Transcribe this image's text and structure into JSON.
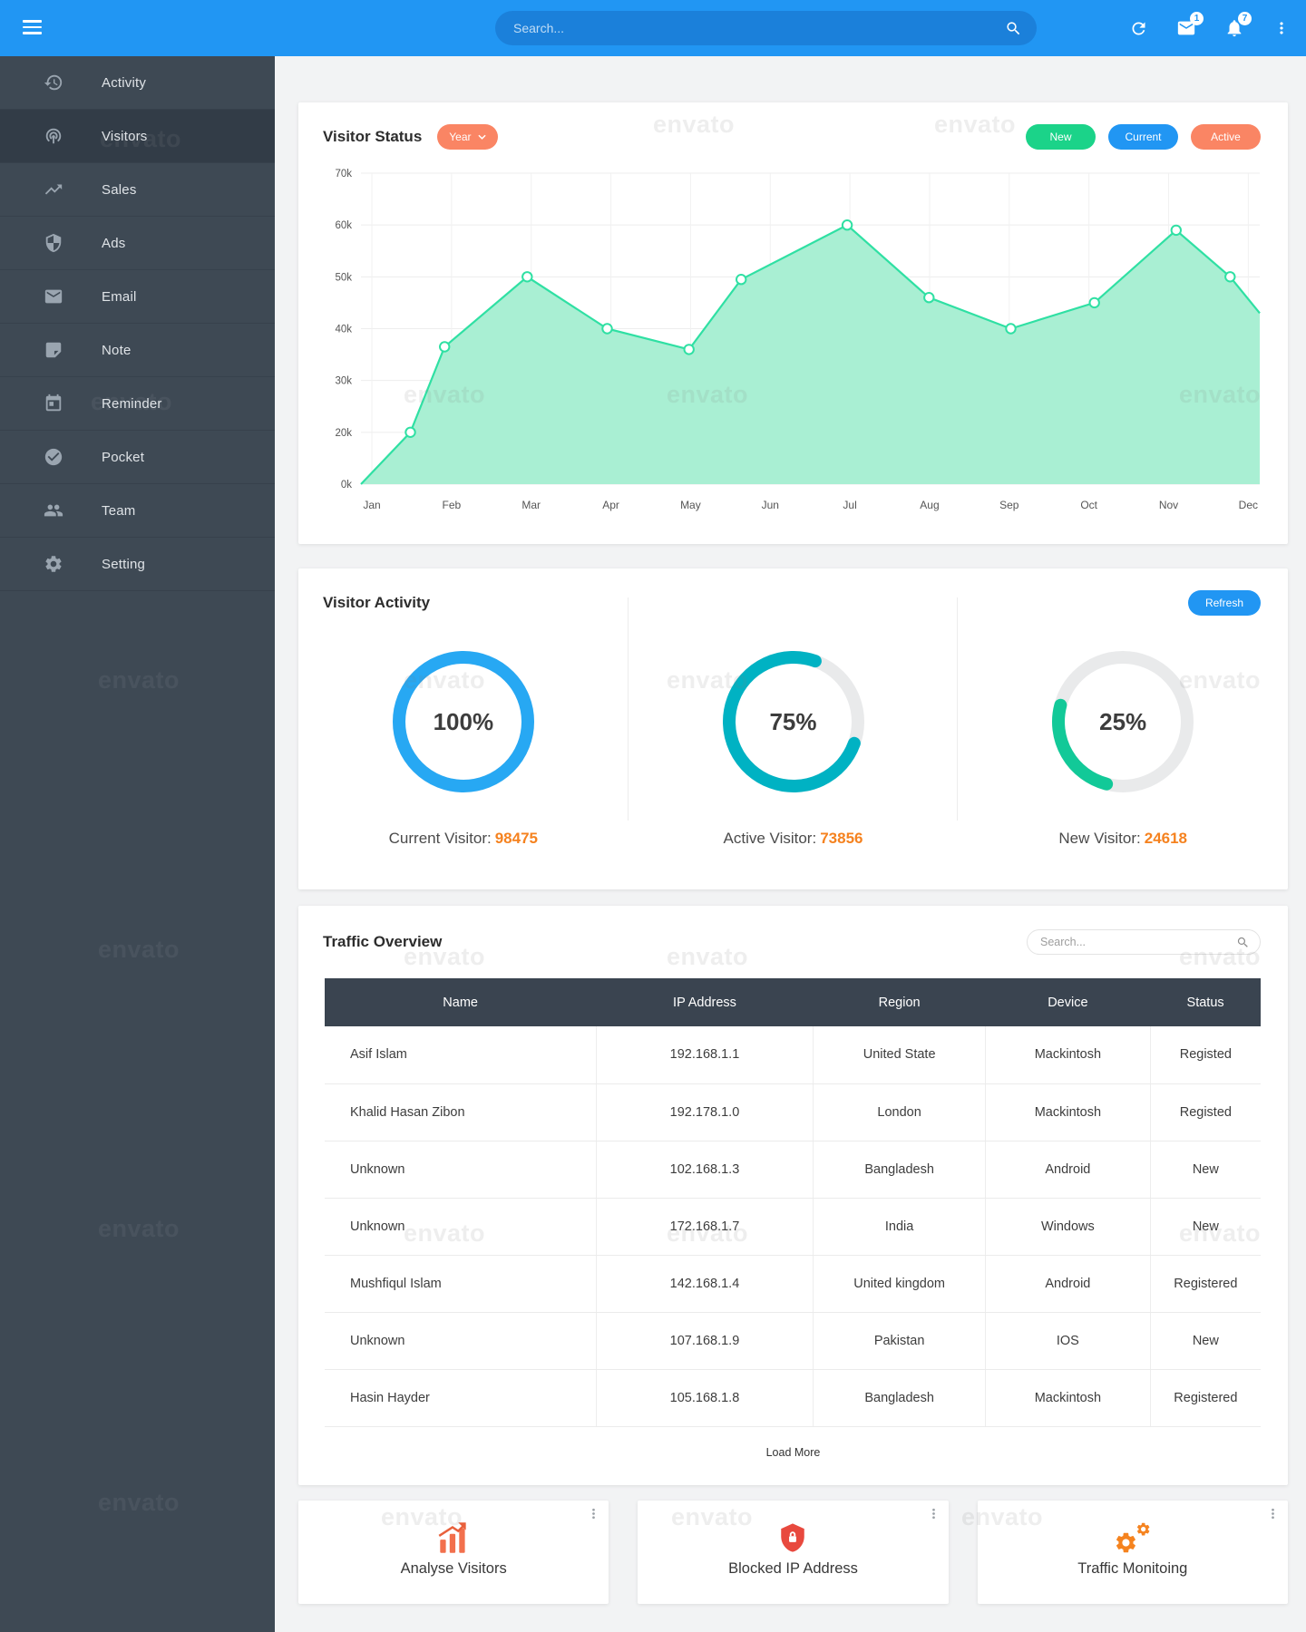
{
  "watermark": "envato",
  "colors": {
    "header_blue": "#2196f3",
    "sidebar_bg": "#3e4954",
    "sidebar_active": "#323c47",
    "pill_orange": "#fa8564",
    "legend_green": "#1bd389",
    "legend_blue": "#2196f3",
    "legend_orange": "#fa8564",
    "chart_line": "#2fe0a3",
    "chart_fill": "#a9efd3",
    "donut_blue": "#27a8f3",
    "donut_teal": "#00b2c3",
    "donut_green": "#12c998",
    "number_orange": "#f5821f",
    "table_header_bg": "#3a4450",
    "shield_red": "#e8493e",
    "gear_orange": "#f5831f",
    "analyse_orange": "#f2704d"
  },
  "header": {
    "search_placeholder": "Search...",
    "mail_badge": "1",
    "bell_badge": "7"
  },
  "sidebar": {
    "items": [
      {
        "label": "Activity",
        "icon": "history-icon",
        "active": false
      },
      {
        "label": "Visitors",
        "icon": "podcast-icon",
        "active": true
      },
      {
        "label": "Sales",
        "icon": "trending-up-icon",
        "active": false
      },
      {
        "label": "Ads",
        "icon": "shield-icon",
        "active": false
      },
      {
        "label": "Email",
        "icon": "envelope-icon",
        "active": false
      },
      {
        "label": "Note",
        "icon": "note-icon",
        "active": false
      },
      {
        "label": "Reminder",
        "icon": "calendar-icon",
        "active": false
      },
      {
        "label": "Pocket",
        "icon": "check-circle-icon",
        "active": false
      },
      {
        "label": "Team",
        "icon": "people-icon",
        "active": false
      },
      {
        "label": "Setting",
        "icon": "gear-icon",
        "active": false
      }
    ]
  },
  "visitor_status": {
    "title": "Visitor Status",
    "period_label": "Year",
    "legend": [
      {
        "label": "New",
        "color": "#1bd389"
      },
      {
        "label": "Current",
        "color": "#2196f3"
      },
      {
        "label": "Active",
        "color": "#fa8564"
      }
    ]
  },
  "chart_data": {
    "type": "area",
    "title": "Visitor Status",
    "series_name": "Visitors",
    "unit": "k",
    "grid": true,
    "x_labels": [
      "Jan",
      "Feb",
      "Mar",
      "Apr",
      "May",
      "Jun",
      "Jul",
      "Aug",
      "Sep",
      "Oct",
      "Nov",
      "Dec"
    ],
    "y_tick_labels": [
      "70k",
      "60k",
      "50k",
      "40k",
      "30k",
      "20k",
      "0k"
    ],
    "ylim": [
      0,
      70
    ],
    "line_color": "#2fe0a3",
    "fill_color": "#a9efd3",
    "points": [
      {
        "x": 0.0,
        "value": 0,
        "marker": false
      },
      {
        "x": 0.055,
        "value": 20,
        "marker": true
      },
      {
        "x": 0.093,
        "value": 36.5,
        "marker": true
      },
      {
        "x": 0.185,
        "value": 50,
        "marker": true
      },
      {
        "x": 0.274,
        "value": 40,
        "marker": true
      },
      {
        "x": 0.365,
        "value": 36,
        "marker": true
      },
      {
        "x": 0.423,
        "value": 49.5,
        "marker": true
      },
      {
        "x": 0.541,
        "value": 60,
        "marker": true
      },
      {
        "x": 0.632,
        "value": 46,
        "marker": true
      },
      {
        "x": 0.723,
        "value": 40,
        "marker": true
      },
      {
        "x": 0.816,
        "value": 45,
        "marker": true
      },
      {
        "x": 0.907,
        "value": 59,
        "marker": true
      },
      {
        "x": 0.967,
        "value": 50,
        "marker": true
      },
      {
        "x": 1.0,
        "value": 43,
        "marker": false
      }
    ]
  },
  "visitor_activity": {
    "title": "Visitor Activity",
    "refresh_label": "Refresh",
    "donuts": [
      {
        "percent": 100,
        "color": "#27a8f3",
        "start_angle": -90,
        "label": "Current Visitor:",
        "value": "98475"
      },
      {
        "percent": 75,
        "color": "#00b2c3",
        "start_angle": 20,
        "label": "Active Visitor:",
        "value": "73856"
      },
      {
        "percent": 25,
        "color": "#12c998",
        "start_angle": 105,
        "label": "New Visitor:",
        "value": "24618"
      }
    ]
  },
  "traffic": {
    "title": "Traffic Overview",
    "search_placeholder": "Search...",
    "columns": [
      "Name",
      "IP Address",
      "Region",
      "Device",
      "Status"
    ],
    "rows": [
      [
        "Asif Islam",
        "192.168.1.1",
        "United State",
        "Mackintosh",
        "Registed"
      ],
      [
        "Khalid Hasan Zibon",
        "192.178.1.0",
        "London",
        "Mackintosh",
        "Registed"
      ],
      [
        "Unknown",
        "102.168.1.3",
        "Bangladesh",
        "Android",
        "New"
      ],
      [
        "Unknown",
        "172.168.1.7",
        "India",
        "Windows",
        "New"
      ],
      [
        "Mushfiqul Islam",
        "142.168.1.4",
        "United kingdom",
        "Android",
        "Registered"
      ],
      [
        "Unknown",
        "107.168.1.9",
        "Pakistan",
        "IOS",
        "New"
      ],
      [
        "Hasin Hayder",
        "105.168.1.8",
        "Bangladesh",
        "Mackintosh",
        "Registered"
      ]
    ],
    "load_more_label": "Load More"
  },
  "footer_cards": [
    {
      "label": "Analyse Visitors",
      "icon": "bar-chart-icon"
    },
    {
      "label": "Blocked IP Address",
      "icon": "shield-lock-icon"
    },
    {
      "label": "Traffic Monitoing",
      "icon": "gears-icon"
    }
  ]
}
